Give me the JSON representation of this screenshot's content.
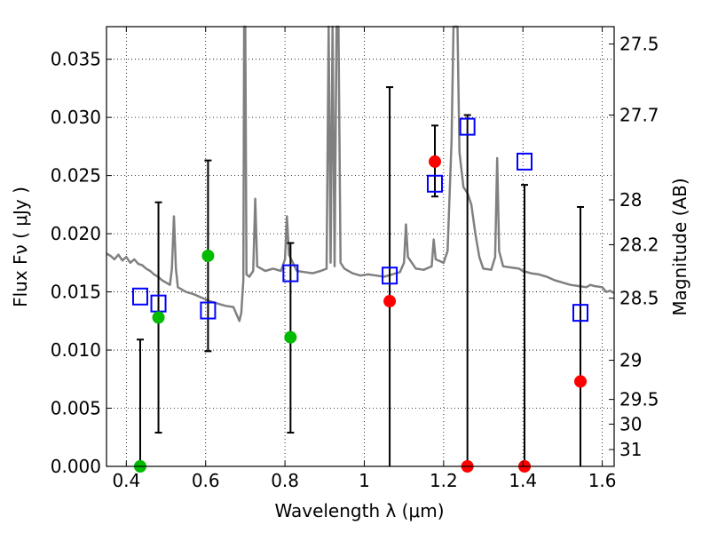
{
  "chart_data": {
    "type": "scatter",
    "xlabel": "Wavelength  λ (μm)",
    "ylabel_left": "Flux  Fν  ( μJy )",
    "ylabel_right": "Magnitude (AB)",
    "xlim": [
      0.35,
      1.63
    ],
    "ylim": [
      0.0,
      0.0378
    ],
    "x_ticks": [
      {
        "value": 0.4,
        "label": "0.4"
      },
      {
        "value": 0.6,
        "label": "0.6"
      },
      {
        "value": 0.8,
        "label": "0.8"
      },
      {
        "value": 1.0,
        "label": "1"
      },
      {
        "value": 1.2,
        "label": "1.2"
      },
      {
        "value": 1.4,
        "label": "1.4"
      },
      {
        "value": 1.6,
        "label": "1.6"
      }
    ],
    "y_ticks": [
      {
        "value": 0.0,
        "label": "0.000"
      },
      {
        "value": 0.005,
        "label": "0.005"
      },
      {
        "value": 0.01,
        "label": "0.010"
      },
      {
        "value": 0.015,
        "label": "0.015"
      },
      {
        "value": 0.02,
        "label": "0.020"
      },
      {
        "value": 0.025,
        "label": "0.025"
      },
      {
        "value": 0.03,
        "label": "0.030"
      },
      {
        "value": 0.035,
        "label": "0.035"
      }
    ],
    "right_ticks": [
      {
        "mag": 27.5,
        "label": "27.5"
      },
      {
        "mag": 27.7,
        "label": "27.7"
      },
      {
        "mag": 28.0,
        "label": "28"
      },
      {
        "mag": 28.2,
        "label": "28.2"
      },
      {
        "mag": 28.5,
        "label": "28.5"
      },
      {
        "mag": 29.0,
        "label": "29"
      },
      {
        "mag": 29.5,
        "label": "29.5"
      },
      {
        "mag": 30.0,
        "label": "30"
      },
      {
        "mag": 31.0,
        "label": "31"
      }
    ],
    "grid": true,
    "colors": {
      "model": "#808080",
      "model_points": "#0000ff",
      "optical_obs": "#00bb00",
      "nir_obs": "#ff0000",
      "errorbar": "#000000"
    },
    "model_spectrum": [
      [
        0.35,
        0.0183
      ],
      [
        0.36,
        0.0181
      ],
      [
        0.37,
        0.0178
      ],
      [
        0.38,
        0.0182
      ],
      [
        0.39,
        0.0177
      ],
      [
        0.4,
        0.018
      ],
      [
        0.41,
        0.0175
      ],
      [
        0.42,
        0.0178
      ],
      [
        0.43,
        0.0174
      ],
      [
        0.44,
        0.0173
      ],
      [
        0.45,
        0.017
      ],
      [
        0.46,
        0.0168
      ],
      [
        0.47,
        0.0165
      ],
      [
        0.48,
        0.0163
      ],
      [
        0.49,
        0.016
      ],
      [
        0.5,
        0.0158
      ],
      [
        0.51,
        0.0156
      ],
      [
        0.515,
        0.017
      ],
      [
        0.52,
        0.0215
      ],
      [
        0.525,
        0.017
      ],
      [
        0.53,
        0.0154
      ],
      [
        0.55,
        0.015
      ],
      [
        0.57,
        0.0148
      ],
      [
        0.59,
        0.0145
      ],
      [
        0.61,
        0.0142
      ],
      [
        0.63,
        0.014
      ],
      [
        0.65,
        0.0138
      ],
      [
        0.67,
        0.0137
      ],
      [
        0.685,
        0.0125
      ],
      [
        0.69,
        0.0132
      ],
      [
        0.695,
        0.016
      ],
      [
        0.697,
        0.0378
      ],
      [
        0.7,
        0.0378
      ],
      [
        0.703,
        0.0165
      ],
      [
        0.71,
        0.0163
      ],
      [
        0.72,
        0.0168
      ],
      [
        0.725,
        0.023
      ],
      [
        0.73,
        0.0172
      ],
      [
        0.75,
        0.0168
      ],
      [
        0.77,
        0.017
      ],
      [
        0.79,
        0.0168
      ],
      [
        0.8,
        0.0178
      ],
      [
        0.805,
        0.0215
      ],
      [
        0.81,
        0.0182
      ],
      [
        0.83,
        0.0168
      ],
      [
        0.85,
        0.0167
      ],
      [
        0.87,
        0.0166
      ],
      [
        0.89,
        0.0168
      ],
      [
        0.905,
        0.017
      ],
      [
        0.91,
        0.0378
      ],
      [
        0.915,
        0.0175
      ],
      [
        0.92,
        0.0378
      ],
      [
        0.925,
        0.0172
      ],
      [
        0.93,
        0.0378
      ],
      [
        0.935,
        0.0378
      ],
      [
        0.94,
        0.0175
      ],
      [
        0.95,
        0.017
      ],
      [
        0.97,
        0.0166
      ],
      [
        0.99,
        0.0164
      ],
      [
        1.01,
        0.0165
      ],
      [
        1.03,
        0.0164
      ],
      [
        1.05,
        0.0163
      ],
      [
        1.07,
        0.0165
      ],
      [
        1.09,
        0.0167
      ],
      [
        1.1,
        0.0175
      ],
      [
        1.105,
        0.0208
      ],
      [
        1.11,
        0.018
      ],
      [
        1.13,
        0.017
      ],
      [
        1.15,
        0.0169
      ],
      [
        1.17,
        0.0172
      ],
      [
        1.175,
        0.0195
      ],
      [
        1.18,
        0.0178
      ],
      [
        1.2,
        0.0175
      ],
      [
        1.21,
        0.0185
      ],
      [
        1.22,
        0.028
      ],
      [
        1.225,
        0.0378
      ],
      [
        1.235,
        0.0378
      ],
      [
        1.24,
        0.027
      ],
      [
        1.25,
        0.024
      ],
      [
        1.26,
        0.0235
      ],
      [
        1.27,
        0.0225
      ],
      [
        1.28,
        0.02
      ],
      [
        1.29,
        0.018
      ],
      [
        1.3,
        0.017
      ],
      [
        1.32,
        0.0169
      ],
      [
        1.33,
        0.018
      ],
      [
        1.335,
        0.0265
      ],
      [
        1.34,
        0.0185
      ],
      [
        1.35,
        0.0172
      ],
      [
        1.37,
        0.0171
      ],
      [
        1.39,
        0.017
      ],
      [
        1.4,
        0.0168
      ],
      [
        1.42,
        0.0166
      ],
      [
        1.44,
        0.0165
      ],
      [
        1.46,
        0.0163
      ],
      [
        1.48,
        0.016
      ],
      [
        1.5,
        0.0158
      ],
      [
        1.52,
        0.0156
      ],
      [
        1.54,
        0.0155
      ],
      [
        1.56,
        0.0154
      ],
      [
        1.57,
        0.0156
      ],
      [
        1.58,
        0.0155
      ],
      [
        1.6,
        0.0154
      ],
      [
        1.61,
        0.015
      ],
      [
        1.62,
        0.0151
      ],
      [
        1.63,
        0.0149
      ]
    ],
    "series": [
      {
        "name": "model_photometry",
        "marker": "square",
        "points": [
          {
            "x": 0.435,
            "y": 0.0146
          },
          {
            "x": 0.481,
            "y": 0.014
          },
          {
            "x": 0.606,
            "y": 0.0134
          },
          {
            "x": 0.814,
            "y": 0.0166
          },
          {
            "x": 1.064,
            "y": 0.0164
          },
          {
            "x": 1.178,
            "y": 0.0243
          },
          {
            "x": 1.26,
            "y": 0.0292
          },
          {
            "x": 1.404,
            "y": 0.0262
          },
          {
            "x": 1.545,
            "y": 0.0132
          }
        ]
      },
      {
        "name": "optical_observed",
        "marker": "circle",
        "points": [
          {
            "x": 0.435,
            "y": 0.0,
            "err_lo": 0.0,
            "err_hi": 0.0109
          },
          {
            "x": 0.481,
            "y": 0.0128,
            "err_lo": 0.0029,
            "err_hi": 0.0227
          },
          {
            "x": 0.606,
            "y": 0.0181,
            "err_lo": 0.0099,
            "err_hi": 0.0263
          },
          {
            "x": 0.814,
            "y": 0.0111,
            "err_lo": 0.0029,
            "err_hi": 0.0192
          }
        ]
      },
      {
        "name": "nir_observed",
        "marker": "circle",
        "points": [
          {
            "x": 1.064,
            "y": 0.0142,
            "err_lo": 0.0,
            "err_hi": 0.0326
          },
          {
            "x": 1.178,
            "y": 0.0262,
            "err_lo": 0.0232,
            "err_hi": 0.0293
          },
          {
            "x": 1.26,
            "y": 0.0,
            "err_lo": 0.0,
            "err_hi": 0.0302
          },
          {
            "x": 1.404,
            "y": 0.0,
            "err_lo": 0.0,
            "err_hi": 0.0242
          },
          {
            "x": 1.545,
            "y": 0.0073,
            "err_lo": 0.0,
            "err_hi": 0.0223
          }
        ]
      }
    ]
  }
}
